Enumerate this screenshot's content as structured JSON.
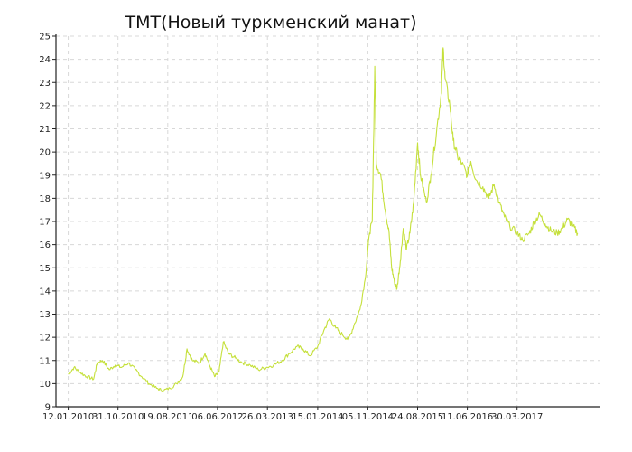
{
  "chart_data": {
    "type": "line",
    "title": "TMT(Новый туркменский манат)",
    "xlabel": "",
    "ylabel": "",
    "ylim": [
      9,
      25
    ],
    "y_ticks": [
      9,
      10,
      11,
      12,
      13,
      14,
      15,
      16,
      17,
      18,
      19,
      20,
      21,
      22,
      23,
      24,
      25
    ],
    "x_range": [
      "2009-11-01",
      "2018-08-01"
    ],
    "x_tick_labels": [
      "12.01.2010",
      "31.10.2010",
      "19.08.2011",
      "06.06.2012",
      "26.03.2013",
      "15.01.2014",
      "05.11.2014",
      "24.08.2015",
      "11.06.2016",
      "30.03.2017"
    ],
    "x_tick_dates": [
      "2010-01-12",
      "2010-10-31",
      "2011-08-19",
      "2012-06-06",
      "2013-03-26",
      "2014-01-15",
      "2014-11-05",
      "2015-08-24",
      "2016-06-11",
      "2017-03-30"
    ],
    "grid": true,
    "line_color": "#c5e03b",
    "series": [
      {
        "name": "",
        "points": [
          [
            "2010-01-12",
            10.4
          ],
          [
            "2010-02-15",
            10.7
          ],
          [
            "2010-03-20",
            10.5
          ],
          [
            "2010-05-01",
            10.3
          ],
          [
            "2010-06-10",
            10.2
          ],
          [
            "2010-07-01",
            10.9
          ],
          [
            "2010-08-01",
            11.0
          ],
          [
            "2010-09-10",
            10.6
          ],
          [
            "2010-10-15",
            10.8
          ],
          [
            "2010-11-20",
            10.7
          ],
          [
            "2011-01-01",
            10.9
          ],
          [
            "2011-02-10",
            10.6
          ],
          [
            "2011-03-20",
            10.3
          ],
          [
            "2011-05-01",
            10.0
          ],
          [
            "2011-06-15",
            9.8
          ],
          [
            "2011-07-20",
            9.7
          ],
          [
            "2011-09-01",
            9.8
          ],
          [
            "2011-10-10",
            10.0
          ],
          [
            "2011-11-15",
            10.3
          ],
          [
            "2011-12-10",
            11.5
          ],
          [
            "2012-01-10",
            11.0
          ],
          [
            "2012-02-20",
            10.9
          ],
          [
            "2012-03-25",
            11.3
          ],
          [
            "2012-04-20",
            10.8
          ],
          [
            "2012-05-20",
            10.3
          ],
          [
            "2012-06-15",
            10.5
          ],
          [
            "2012-07-10",
            11.8
          ],
          [
            "2012-08-10",
            11.3
          ],
          [
            "2012-09-20",
            11.1
          ],
          [
            "2012-11-01",
            10.9
          ],
          [
            "2012-12-15",
            10.8
          ],
          [
            "2013-02-01",
            10.6
          ],
          [
            "2013-03-20",
            10.7
          ],
          [
            "2013-05-01",
            10.8
          ],
          [
            "2013-06-20",
            11.0
          ],
          [
            "2013-08-01",
            11.3
          ],
          [
            "2013-09-15",
            11.6
          ],
          [
            "2013-10-20",
            11.5
          ],
          [
            "2013-12-01",
            11.2
          ],
          [
            "2014-01-15",
            11.6
          ],
          [
            "2014-02-20",
            12.3
          ],
          [
            "2014-03-25",
            12.8
          ],
          [
            "2014-05-01",
            12.4
          ],
          [
            "2014-06-10",
            12.1
          ],
          [
            "2014-07-15",
            11.9
          ],
          [
            "2014-08-20",
            12.6
          ],
          [
            "2014-09-20",
            13.2
          ],
          [
            "2014-10-20",
            14.5
          ],
          [
            "2014-11-15",
            16.5
          ],
          [
            "2014-12-01",
            17.0
          ],
          [
            "2014-12-16",
            23.7
          ],
          [
            "2014-12-25",
            19.5
          ],
          [
            "2015-01-20",
            19.0
          ],
          [
            "2015-02-15",
            17.5
          ],
          [
            "2015-03-10",
            16.5
          ],
          [
            "2015-03-25",
            15.0
          ],
          [
            "2015-04-10",
            14.4
          ],
          [
            "2015-04-25",
            14.1
          ],
          [
            "2015-05-15",
            15.3
          ],
          [
            "2015-06-01",
            16.7
          ],
          [
            "2015-06-20",
            15.8
          ],
          [
            "2015-07-10",
            16.5
          ],
          [
            "2015-08-01",
            17.8
          ],
          [
            "2015-08-24",
            20.4
          ],
          [
            "2015-09-10",
            19.0
          ],
          [
            "2015-10-15",
            17.8
          ],
          [
            "2015-11-10",
            19.0
          ],
          [
            "2015-12-15",
            21.0
          ],
          [
            "2016-01-10",
            22.5
          ],
          [
            "2016-01-21",
            24.5
          ],
          [
            "2016-02-01",
            23.2
          ],
          [
            "2016-03-01",
            22.0
          ],
          [
            "2016-03-20",
            20.5
          ],
          [
            "2016-04-15",
            19.8
          ],
          [
            "2016-05-10",
            19.5
          ],
          [
            "2016-06-11",
            19.0
          ],
          [
            "2016-07-01",
            19.6
          ],
          [
            "2016-08-01",
            18.8
          ],
          [
            "2016-09-10",
            18.5
          ],
          [
            "2016-10-15",
            18.0
          ],
          [
            "2016-11-15",
            18.6
          ],
          [
            "2016-12-15",
            17.8
          ],
          [
            "2017-01-15",
            17.2
          ],
          [
            "2017-02-15",
            16.8
          ],
          [
            "2017-03-30",
            16.5
          ],
          [
            "2017-05-01",
            16.2
          ],
          [
            "2017-06-10",
            16.5
          ],
          [
            "2017-07-10",
            17.0
          ],
          [
            "2017-08-10",
            17.3
          ],
          [
            "2017-09-10",
            16.9
          ],
          [
            "2017-10-15",
            16.6
          ],
          [
            "2017-11-20",
            16.5
          ],
          [
            "2017-12-20",
            16.7
          ],
          [
            "2018-01-20",
            17.1
          ],
          [
            "2018-02-20",
            16.8
          ],
          [
            "2018-03-20",
            16.5
          ]
        ]
      }
    ]
  }
}
